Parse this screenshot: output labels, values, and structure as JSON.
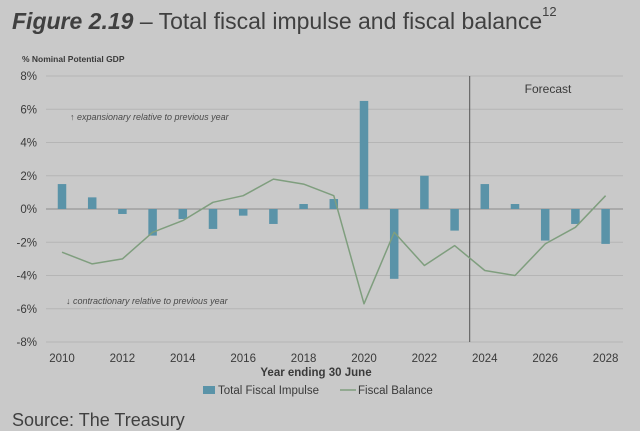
{
  "title": {
    "figure_label": "Figure 2.19",
    "separator": " – ",
    "text": "Total fiscal impulse and fiscal balance",
    "superscript": "12"
  },
  "source": "Source: The Treasury",
  "colors": {
    "bar": "#5a93a8",
    "line": "#7f9e7e",
    "grid": "#b5b5b5",
    "axis": "#8a8a8a",
    "divider": "#555555"
  },
  "chart_data": {
    "type": "bar",
    "title": "Total fiscal impulse and fiscal balance",
    "ylabel": "% Nominal Potential GDP",
    "xlabel": "Year ending 30 June",
    "ylim": [
      -8,
      8
    ],
    "yticks": [
      8,
      6,
      4,
      2,
      0,
      -2,
      -4,
      -6,
      -8
    ],
    "ytick_labels": [
      "8%",
      "6%",
      "4%",
      "2%",
      "0%",
      "-2%",
      "-4%",
      "-6%",
      "-8%"
    ],
    "x": [
      2010,
      2011,
      2012,
      2013,
      2014,
      2015,
      2016,
      2017,
      2018,
      2019,
      2020,
      2021,
      2022,
      2023,
      2024,
      2025,
      2026,
      2027,
      2028
    ],
    "xtick_labels": [
      "2010",
      "2012",
      "2014",
      "2016",
      "2018",
      "2020",
      "2022",
      "2024",
      "2026",
      "2028"
    ],
    "forecast_from": 2024,
    "forecast_label": "Forecast",
    "grid": true,
    "legend_position": "bottom",
    "annotations": {
      "expansionary": "↑ expansionary relative to previous year",
      "contractionary": "↓ contractionary relative to previous year"
    },
    "series": [
      {
        "name": "Total Fiscal Impulse",
        "type": "bar",
        "values": [
          1.5,
          0.7,
          -0.3,
          -1.6,
          -0.6,
          -1.2,
          -0.4,
          -0.9,
          0.3,
          0.6,
          6.5,
          -4.2,
          2.0,
          -1.3,
          1.5,
          0.3,
          -1.9,
          -0.9,
          -2.1
        ]
      },
      {
        "name": "Fiscal Balance",
        "type": "line",
        "values": [
          -2.6,
          -3.3,
          -3.0,
          -1.4,
          -0.7,
          0.4,
          0.8,
          1.8,
          1.5,
          0.8,
          -5.7,
          -1.4,
          -3.4,
          -2.2,
          -3.7,
          -4.0,
          -2.1,
          -1.1,
          0.8
        ]
      }
    ]
  }
}
